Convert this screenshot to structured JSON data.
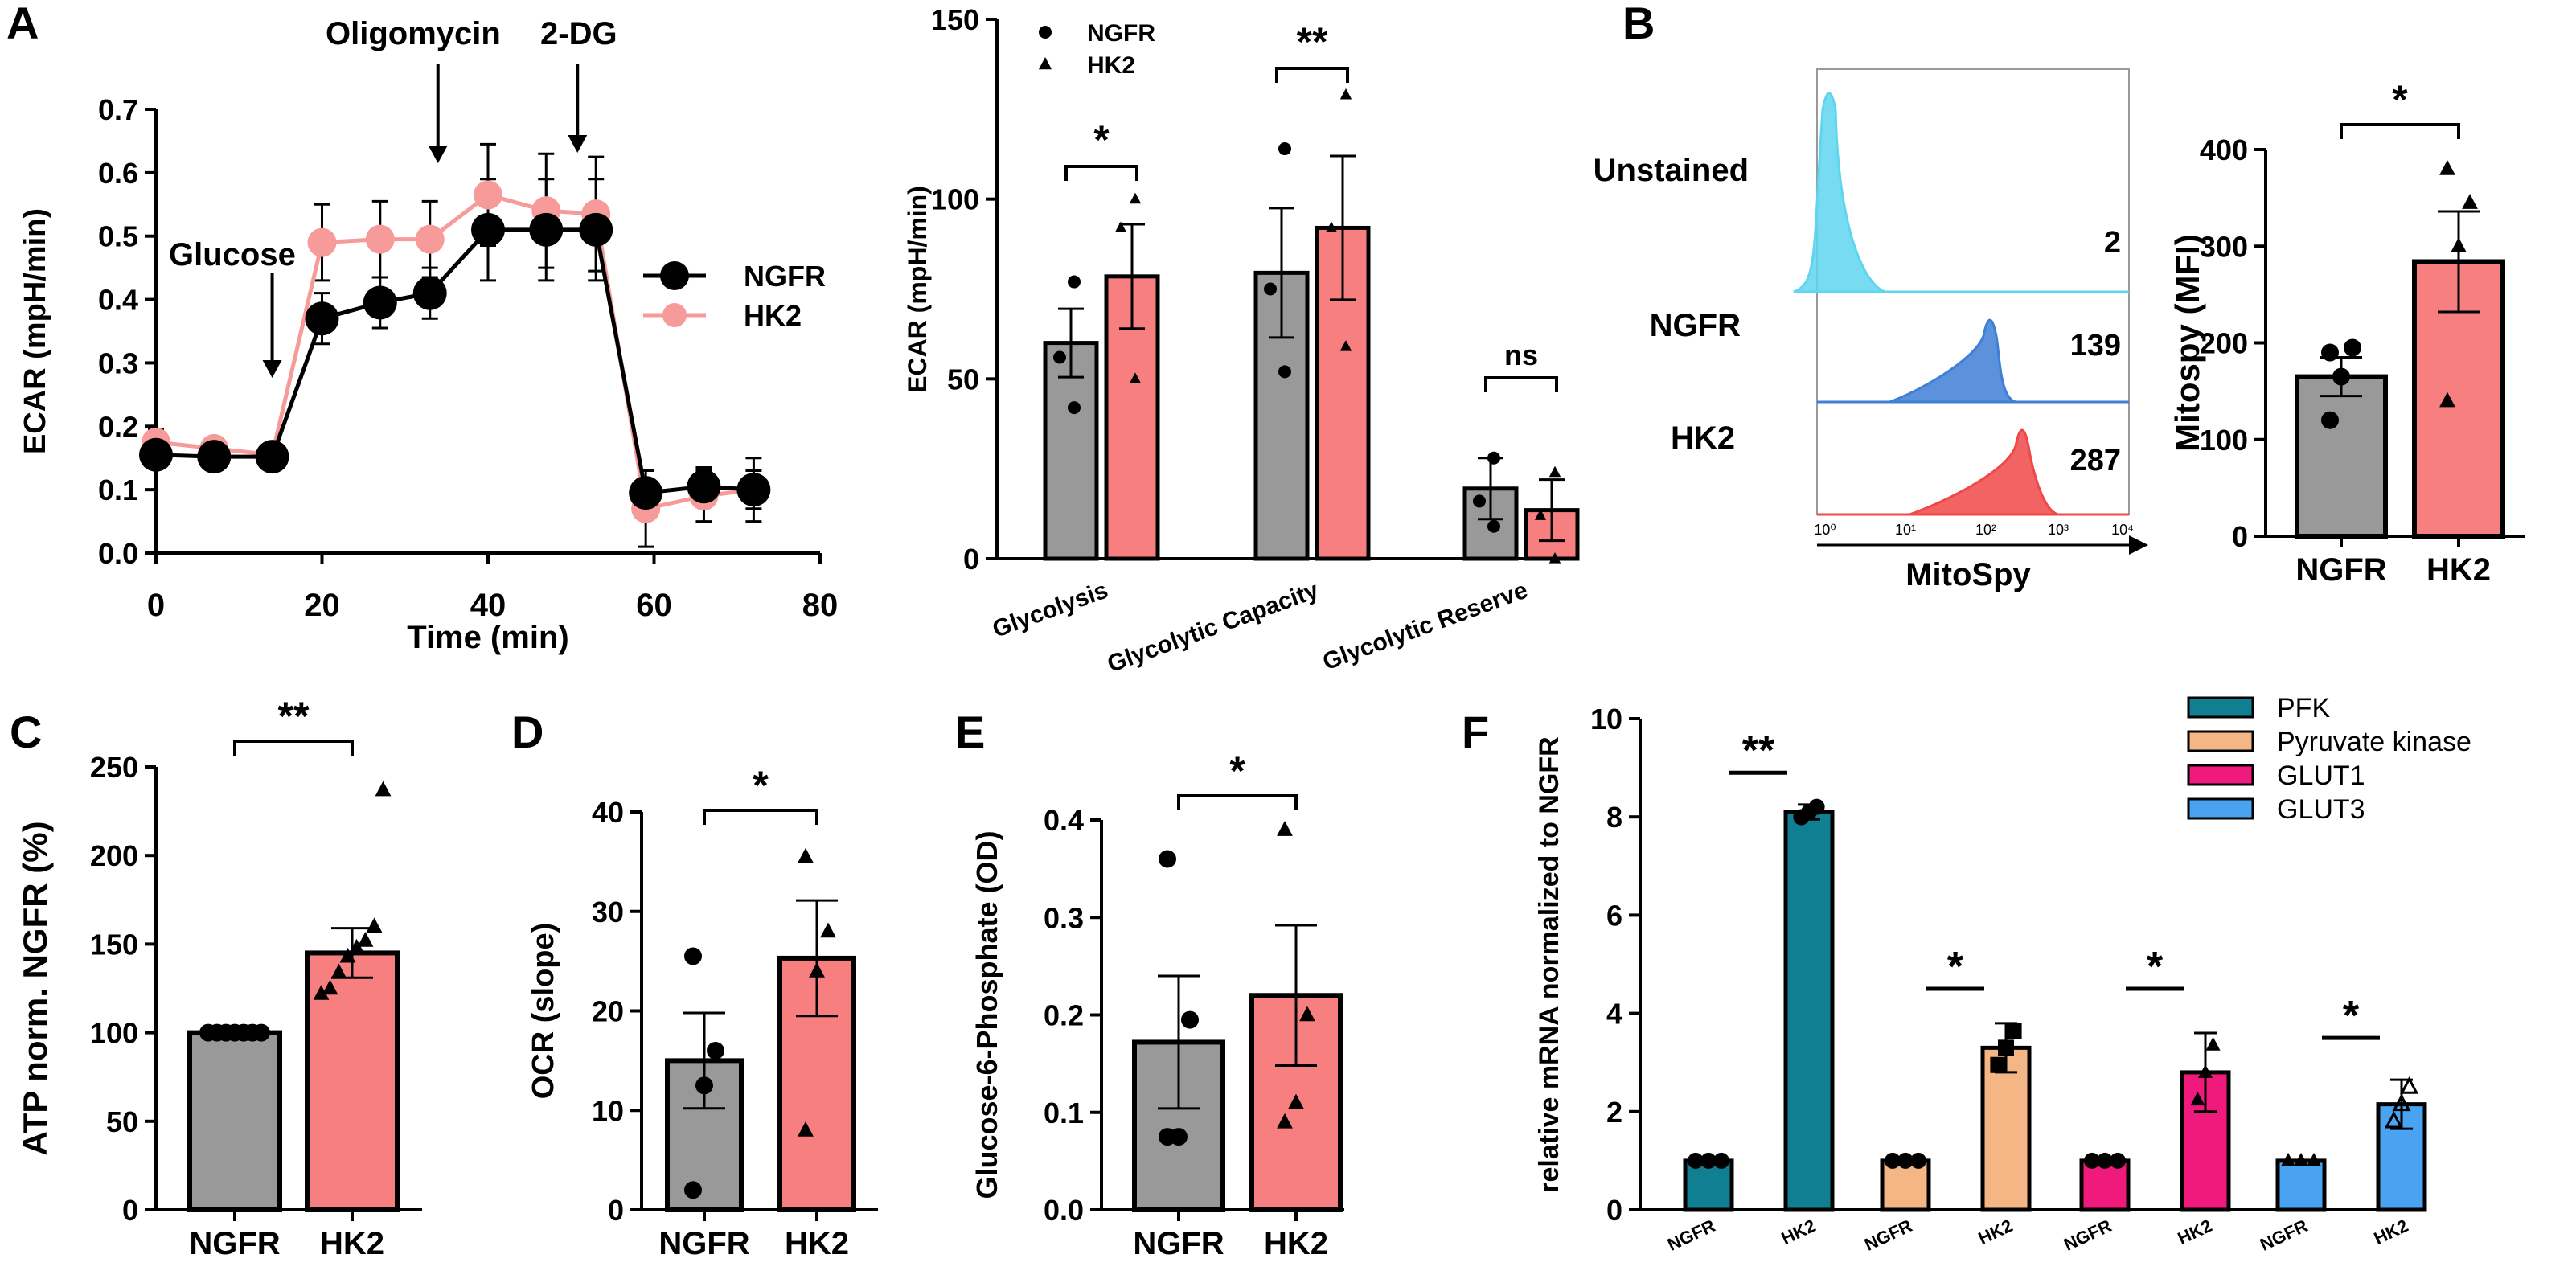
{
  "panel_labels": {
    "A": "A",
    "B": "B",
    "C": "C",
    "D": "D",
    "E": "E",
    "F": "F"
  },
  "colors": {
    "ngfr": "#999999",
    "hk2": "#f77f7f",
    "ngfr_line": "#000000",
    "hk2_line": "#f79a9a",
    "pfk": "#0f7f91",
    "pyruvate_kinase": "#f3b684",
    "glut1": "#f0197c",
    "glut3": "#4aa3f0",
    "unstained": "#5fd6ee",
    "ngfr_hist": "#3f7fd6",
    "hk2_hist": "#f04848"
  },
  "chart_data": [
    {
      "id": "A_line",
      "type": "line",
      "xlabel": "Time (min)",
      "ylabel": "ECAR (mpH/min)",
      "xlim": [
        0,
        80
      ],
      "ylim": [
        0,
        0.7
      ],
      "xticks": [
        "0",
        "20",
        "40",
        "60",
        "80"
      ],
      "yticks": [
        "0.0",
        "0.1",
        "0.2",
        "0.3",
        "0.4",
        "0.5",
        "0.6",
        "0.7"
      ],
      "annotations": [
        "Glucose",
        "Oligomycin",
        "2-DG"
      ],
      "annotation_x": [
        14,
        33,
        50
      ],
      "series": [
        {
          "name": "NGFR",
          "x": [
            0,
            7,
            14,
            20,
            27,
            33,
            40,
            47,
            53,
            59,
            66,
            72
          ],
          "y": [
            0.155,
            0.152,
            0.152,
            0.37,
            0.395,
            0.41,
            0.51,
            0.51,
            0.51,
            0.095,
            0.105,
            0.1
          ],
          "err": [
            0.02,
            0.01,
            0.01,
            0.04,
            0.04,
            0.04,
            0.08,
            0.08,
            0.08,
            0.02,
            0.03,
            0.03
          ]
        },
        {
          "name": "HK2",
          "x": [
            0,
            7,
            14,
            20,
            27,
            33,
            40,
            47,
            53,
            59,
            66,
            72
          ],
          "y": [
            0.175,
            0.165,
            0.155,
            0.49,
            0.495,
            0.495,
            0.565,
            0.54,
            0.535,
            0.07,
            0.09,
            0.1
          ],
          "err": [
            0.02,
            0.01,
            0.01,
            0.06,
            0.06,
            0.06,
            0.08,
            0.09,
            0.09,
            0.06,
            0.04,
            0.05
          ]
        }
      ]
    },
    {
      "id": "A_bar",
      "type": "bar",
      "ylabel": "ECAR (mpH/min)",
      "ylim": [
        0,
        150
      ],
      "yticks": [
        "0",
        "50",
        "100",
        "150"
      ],
      "categories": [
        "Glycolysis",
        "Glycolytic Capacity",
        "Glycolytic Reserve"
      ],
      "series": [
        {
          "name": "NGFR",
          "values": [
            60,
            79.5,
            19.5
          ],
          "err": [
            9.5,
            18,
            8.5
          ],
          "points": [
            [
              42,
              56,
              77
            ],
            [
              52,
              75,
              114
            ],
            [
              9,
              16,
              28
            ]
          ]
        },
        {
          "name": "HK2",
          "values": [
            78.5,
            92,
            13.5
          ],
          "err": [
            14.5,
            20,
            8.5
          ],
          "points": [
            [
              50,
              92,
              100
            ],
            [
              59,
              92,
              129
            ],
            [
              0,
              12,
              24
            ]
          ]
        }
      ],
      "significance": [
        "*",
        "**",
        "ns"
      ]
    },
    {
      "id": "B_hist",
      "type": "histogram",
      "xlabel": "MitoSpy",
      "xticks": [
        "10⁰",
        "10¹",
        "10²",
        "10³",
        "10⁴"
      ],
      "rows": [
        {
          "label": "Unstained",
          "mfi": "2"
        },
        {
          "label": "NGFR",
          "mfi": "139"
        },
        {
          "label": "HK2",
          "mfi": "287"
        }
      ]
    },
    {
      "id": "B_bar",
      "type": "bar",
      "ylabel": "Mitospy (MFI)",
      "ylim": [
        0,
        400
      ],
      "yticks": [
        "0",
        "100",
        "200",
        "300",
        "400"
      ],
      "categories": [
        "NGFR",
        "HK2"
      ],
      "values": [
        165,
        284
      ],
      "err": [
        20,
        52
      ],
      "points": [
        [
          120,
          165,
          195,
          190
        ],
        [
          140,
          300,
          345,
          380
        ]
      ],
      "significance": "*"
    },
    {
      "id": "C_bar",
      "type": "bar",
      "ylabel": "ATP norm. NGFR (%)",
      "ylim": [
        0,
        250
      ],
      "yticks": [
        "0",
        "50",
        "100",
        "150",
        "200",
        "250"
      ],
      "categories": [
        "NGFR",
        "HK2"
      ],
      "values": [
        100,
        145
      ],
      "err": [
        0,
        14
      ],
      "points": [
        [
          100,
          100,
          100,
          100,
          100,
          100,
          100
        ],
        [
          122,
          125,
          134,
          143,
          148,
          152,
          160,
          237
        ]
      ],
      "significance": "**"
    },
    {
      "id": "D_bar",
      "type": "bar",
      "ylabel": "OCR (slope)",
      "ylim": [
        0,
        40
      ],
      "yticks": [
        "0",
        "10",
        "20",
        "30",
        "40"
      ],
      "categories": [
        "NGFR",
        "HK2"
      ],
      "values": [
        15,
        25.3
      ],
      "err": [
        4.8,
        5.8
      ],
      "points": [
        [
          2,
          12.5,
          16,
          25.5
        ],
        [
          8,
          24,
          28,
          35.5
        ]
      ],
      "significance": "*"
    },
    {
      "id": "E_bar",
      "type": "bar",
      "ylabel": "Glucose-6-Phosphate (OD)",
      "ylim": [
        0,
        0.4
      ],
      "yticks": [
        "0.0",
        "0.1",
        "0.2",
        "0.3",
        "0.4"
      ],
      "categories": [
        "NGFR",
        "HK2"
      ],
      "values": [
        0.172,
        0.22
      ],
      "err": [
        0.068,
        0.072
      ],
      "points": [
        [
          0.075,
          0.075,
          0.195,
          0.36
        ],
        [
          0.09,
          0.11,
          0.2,
          0.39
        ]
      ],
      "significance": "*"
    },
    {
      "id": "F_bar",
      "type": "bar",
      "ylabel": "relative mRNA normalized to NGFR",
      "ylim": [
        0,
        10
      ],
      "yticks": [
        "0",
        "2",
        "4",
        "6",
        "8",
        "10"
      ],
      "groups": [
        "PFK",
        "Pyruvate kinase",
        "GLUT1",
        "GLUT3"
      ],
      "group_labels": [
        "NGFR",
        "HK2"
      ],
      "values": [
        [
          1,
          8.1
        ],
        [
          1,
          3.3
        ],
        [
          1,
          2.8
        ],
        [
          1,
          2.15
        ]
      ],
      "err": [
        [
          0,
          0.15
        ],
        [
          0,
          0.5
        ],
        [
          0,
          0.8
        ],
        [
          0,
          0.5
        ]
      ],
      "significance": [
        "**",
        "*",
        "*",
        "*"
      ]
    }
  ]
}
